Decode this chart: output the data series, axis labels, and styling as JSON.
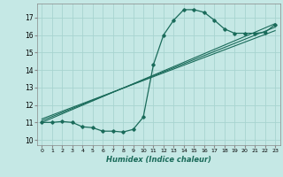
{
  "background_color": "#c5e8e5",
  "grid_color": "#a8d4d0",
  "line_color": "#1a6b5a",
  "xlabel": "Humidex (Indice chaleur)",
  "xlim": [
    -0.5,
    23.5
  ],
  "ylim": [
    9.7,
    17.8
  ],
  "yticks": [
    10,
    11,
    12,
    13,
    14,
    15,
    16,
    17
  ],
  "xticks": [
    0,
    1,
    2,
    3,
    4,
    5,
    6,
    7,
    8,
    9,
    10,
    11,
    12,
    13,
    14,
    15,
    16,
    17,
    18,
    19,
    20,
    21,
    22,
    23
  ],
  "curve1_x": [
    0,
    1,
    2,
    3,
    4,
    5,
    6,
    7,
    8,
    9,
    10,
    11,
    12,
    13,
    14,
    15,
    16,
    17,
    18,
    19,
    20,
    21,
    22,
    23
  ],
  "curve1_y": [
    11.0,
    11.0,
    11.05,
    11.0,
    10.75,
    10.7,
    10.5,
    10.5,
    10.45,
    10.6,
    11.3,
    14.3,
    16.0,
    16.85,
    17.45,
    17.45,
    17.3,
    16.85,
    16.35,
    16.1,
    16.1,
    16.1,
    16.15,
    16.6
  ],
  "line2_x": [
    0,
    23
  ],
  "line2_y": [
    11.0,
    16.65
  ],
  "line3_x": [
    0,
    23
  ],
  "line3_y": [
    11.1,
    16.45
  ],
  "line4_x": [
    0,
    23
  ],
  "line4_y": [
    11.2,
    16.25
  ]
}
